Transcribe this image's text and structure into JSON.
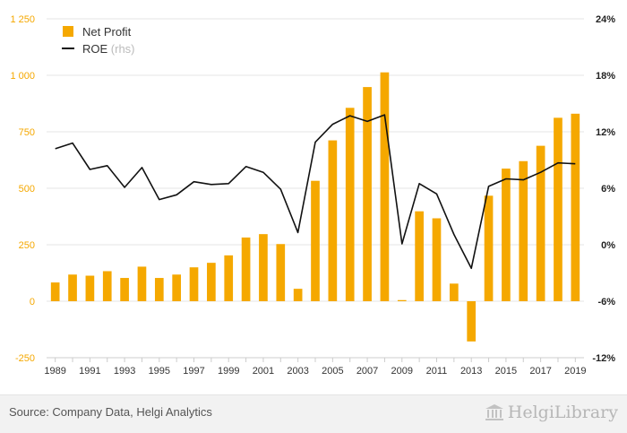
{
  "chart_data": {
    "type": "bar",
    "categories": [
      "1989",
      "1990",
      "1991",
      "1992",
      "1993",
      "1994",
      "1995",
      "1996",
      "1997",
      "1998",
      "1999",
      "2000",
      "2001",
      "2002",
      "2003",
      "2004",
      "2005",
      "2006",
      "2007",
      "2008",
      "2009",
      "2010",
      "2011",
      "2012",
      "2013",
      "2014",
      "2015",
      "2016",
      "2017",
      "2018",
      "2019"
    ],
    "x_tick_labels": [
      "1989",
      "1991",
      "1993",
      "1995",
      "1997",
      "1999",
      "2001",
      "2003",
      "2005",
      "2007",
      "2009",
      "2011",
      "2013",
      "2015",
      "2017",
      "2019"
    ],
    "series": [
      {
        "name": "Net Profit",
        "type": "bar",
        "axis": "left",
        "color": "#f5a800",
        "values": [
          83,
          118,
          113,
          133,
          103,
          153,
          103,
          118,
          150,
          170,
          203,
          282,
          297,
          253,
          55,
          533,
          712,
          856,
          948,
          1013,
          5,
          398,
          367,
          78,
          -178,
          467,
          587,
          620,
          688,
          812,
          830
        ]
      },
      {
        "name": "ROE",
        "legend_suffix": "(rhs)",
        "type": "line",
        "axis": "right",
        "color": "#111111",
        "values": [
          10.2,
          10.8,
          8.0,
          8.4,
          6.1,
          8.2,
          4.8,
          5.3,
          6.7,
          6.4,
          6.5,
          8.3,
          7.7,
          5.9,
          1.3,
          10.9,
          12.8,
          13.7,
          13.1,
          13.8,
          0.1,
          6.5,
          5.4,
          1.1,
          -2.5,
          6.2,
          7.0,
          6.9,
          7.7,
          8.7,
          8.6
        ]
      }
    ],
    "left_axis": {
      "ylim": [
        -250,
        1250
      ],
      "ticks": [
        -250,
        0,
        250,
        500,
        750,
        1000,
        1250
      ],
      "tick_labels": [
        "-250",
        "0",
        "250",
        "500",
        "750",
        "1 000",
        "1 250"
      ],
      "color": "#f5a800"
    },
    "right_axis": {
      "ylim": [
        -12,
        24
      ],
      "ticks": [
        -12,
        -6,
        0,
        6,
        12,
        18,
        24
      ],
      "tick_labels": [
        "-12%",
        "-6%",
        "0%",
        "6%",
        "12%",
        "18%",
        "24%"
      ]
    },
    "legend_position": "top-left",
    "grid": "horizontal"
  },
  "footer": {
    "source": "Source: Company Data, Helgi Analytics",
    "brand": "HelgiLibrary"
  }
}
